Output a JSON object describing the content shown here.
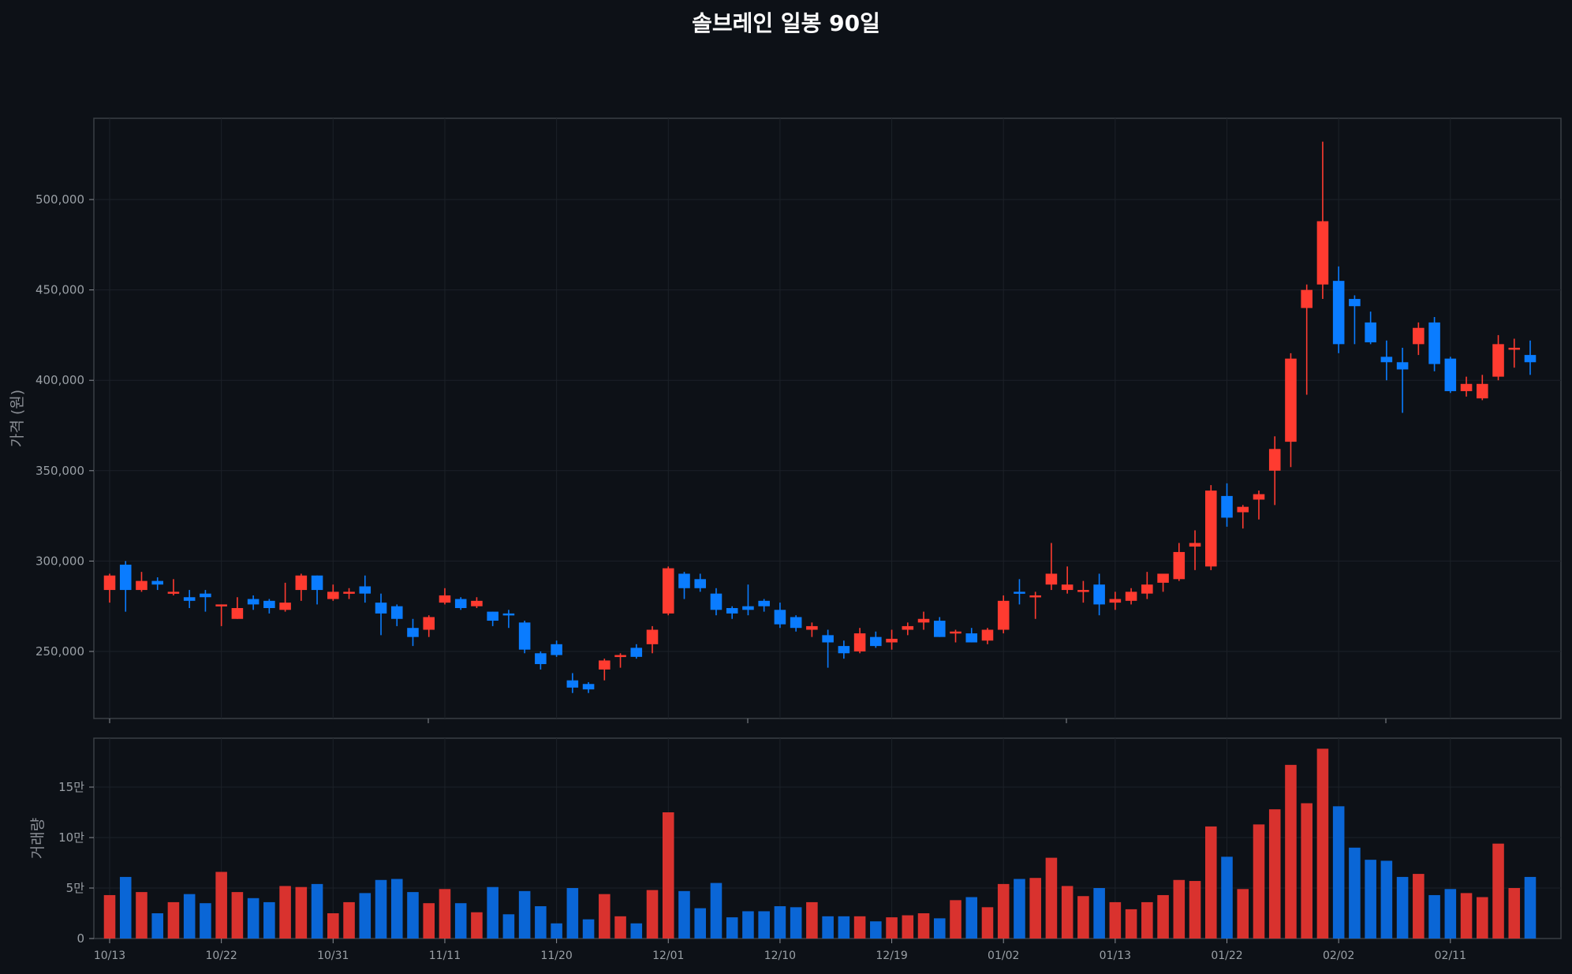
{
  "title": "솔브레인 일봉 90일",
  "colors": {
    "background": "#0d1117",
    "up": "#ff3b30",
    "down": "#0a7cff",
    "vol_up": "#d9322e",
    "vol_down": "#0a66d6",
    "grid": "#1c2128",
    "frame": "#3a3f45"
  },
  "chart_data": [
    {
      "type": "candlestick",
      "title": "솔브레인 일봉 90일",
      "xlabel": "",
      "ylabel": "가격 (원)",
      "ylim": [
        212000,
        545000
      ],
      "yticks": [
        "250,000",
        "300,000",
        "350,000",
        "400,000",
        "450,000",
        "500,000"
      ],
      "ytick_values": [
        250000,
        300000,
        350000,
        400000,
        450000,
        500000
      ],
      "xtick_labels": [
        "10/13",
        "10/22",
        "10/31",
        "11/11",
        "11/20",
        "12/01",
        "12/10",
        "12/19",
        "01/02",
        "01/13",
        "01/22",
        "02/02",
        "02/11"
      ],
      "xtick_index": [
        0,
        7,
        14,
        21,
        28,
        35,
        42,
        49,
        56,
        63,
        70,
        77,
        84
      ],
      "grid": true,
      "candles": [
        [
          284000,
          293000,
          277000,
          292000
        ],
        [
          298000,
          300000,
          272000,
          284000
        ],
        [
          284000,
          294000,
          283000,
          289000
        ],
        [
          289000,
          291000,
          284000,
          287000
        ],
        [
          282000,
          290000,
          281000,
          283000
        ],
        [
          280000,
          284000,
          274000,
          278000
        ],
        [
          282000,
          284000,
          272000,
          280000
        ],
        [
          275000,
          276000,
          264000,
          276000
        ],
        [
          268000,
          280000,
          268000,
          274000
        ],
        [
          279000,
          281000,
          273000,
          276000
        ],
        [
          278000,
          279000,
          271000,
          274000
        ],
        [
          273000,
          288000,
          272000,
          277000
        ],
        [
          284000,
          293000,
          278000,
          292000
        ],
        [
          292000,
          292000,
          276000,
          284000
        ],
        [
          279000,
          287000,
          278000,
          283000
        ],
        [
          282000,
          285000,
          279000,
          283000
        ],
        [
          286000,
          292000,
          277000,
          282000
        ],
        [
          277000,
          282000,
          259000,
          271000
        ],
        [
          275000,
          276000,
          264000,
          268000
        ],
        [
          263000,
          268000,
          253000,
          258000
        ],
        [
          262000,
          270000,
          258000,
          269000
        ],
        [
          277000,
          285000,
          276000,
          281000
        ],
        [
          279000,
          280000,
          273000,
          274000
        ],
        [
          275000,
          280000,
          274000,
          278000
        ],
        [
          272000,
          272000,
          264000,
          267000
        ],
        [
          271000,
          273000,
          263000,
          270000
        ],
        [
          266000,
          267000,
          249000,
          251000
        ],
        [
          249000,
          250000,
          240000,
          243000
        ],
        [
          254000,
          256000,
          247000,
          248000
        ],
        [
          234000,
          238000,
          227000,
          230000
        ],
        [
          232000,
          233000,
          227000,
          229000
        ],
        [
          240000,
          246000,
          234000,
          245000
        ],
        [
          248000,
          249000,
          241000,
          248000
        ],
        [
          252000,
          254000,
          246000,
          247000
        ],
        [
          254000,
          264000,
          249000,
          262000
        ],
        [
          271000,
          297000,
          270000,
          296000
        ],
        [
          293000,
          294000,
          279000,
          285000
        ],
        [
          290000,
          293000,
          283000,
          285000
        ],
        [
          282000,
          285000,
          270000,
          273000
        ],
        [
          274000,
          275000,
          268000,
          271000
        ],
        [
          275000,
          287000,
          270000,
          273000
        ],
        [
          278000,
          279000,
          272000,
          275000
        ],
        [
          273000,
          277000,
          263000,
          265000
        ],
        [
          269000,
          270000,
          261000,
          263000
        ],
        [
          262000,
          266000,
          258000,
          264000
        ],
        [
          259000,
          262000,
          241000,
          255000
        ],
        [
          253000,
          256000,
          246000,
          249000
        ],
        [
          250000,
          263000,
          249000,
          260000
        ],
        [
          258000,
          261000,
          252000,
          253000
        ],
        [
          255000,
          262000,
          251000,
          257000
        ],
        [
          262000,
          266000,
          259000,
          264000
        ],
        [
          266000,
          272000,
          262000,
          268000
        ],
        [
          267000,
          269000,
          258000,
          258000
        ],
        [
          260000,
          262000,
          255000,
          261000
        ],
        [
          260000,
          263000,
          255000,
          255000
        ],
        [
          256000,
          263000,
          254000,
          262000
        ],
        [
          262000,
          281000,
          260000,
          278000
        ],
        [
          283000,
          290000,
          276000,
          282000
        ],
        [
          280000,
          283000,
          268000,
          281000
        ],
        [
          287000,
          310000,
          284000,
          293000
        ],
        [
          284000,
          297000,
          282000,
          287000
        ],
        [
          283000,
          289000,
          277000,
          284000
        ],
        [
          287000,
          293000,
          270000,
          276000
        ],
        [
          277000,
          283000,
          273000,
          279000
        ],
        [
          278000,
          285000,
          276000,
          283000
        ],
        [
          282000,
          294000,
          279000,
          287000
        ],
        [
          288000,
          292000,
          283000,
          293000
        ],
        [
          290000,
          310000,
          289000,
          305000
        ],
        [
          308000,
          317000,
          295000,
          310000
        ],
        [
          297000,
          342000,
          295000,
          339000
        ],
        [
          336000,
          343000,
          319000,
          324000
        ],
        [
          327000,
          331000,
          318000,
          330000
        ],
        [
          334000,
          339000,
          323000,
          337000
        ],
        [
          350000,
          369000,
          331000,
          362000
        ],
        [
          366000,
          415000,
          352000,
          412000
        ],
        [
          440000,
          453000,
          392000,
          450000
        ],
        [
          453000,
          532000,
          445000,
          488000
        ],
        [
          455000,
          463000,
          415000,
          420000
        ],
        [
          445000,
          447000,
          420000,
          441000
        ],
        [
          432000,
          438000,
          420000,
          421000
        ],
        [
          413000,
          422000,
          400000,
          410000
        ],
        [
          410000,
          418000,
          382000,
          406000
        ],
        [
          420000,
          432000,
          414000,
          429000
        ],
        [
          432000,
          435000,
          405000,
          409000
        ],
        [
          412000,
          413000,
          393000,
          394000
        ],
        [
          394000,
          402000,
          391000,
          398000
        ],
        [
          390000,
          403000,
          389000,
          398000
        ],
        [
          402000,
          425000,
          400000,
          420000
        ],
        [
          418000,
          423000,
          407000,
          418000
        ],
        [
          414000,
          422000,
          403000,
          410000
        ]
      ],
      "volume": {
        "ylabel": "거래량",
        "yticks": [
          "0",
          "5만",
          "10만",
          "15만"
        ],
        "ytick_values": [
          0,
          50000,
          100000,
          150000
        ],
        "ylim": [
          0,
          190000
        ],
        "values": [
          43000,
          61000,
          46000,
          25000,
          36000,
          44000,
          35000,
          66000,
          46000,
          40000,
          36000,
          52000,
          51000,
          54000,
          25000,
          36000,
          45000,
          58000,
          59000,
          46000,
          35000,
          49000,
          35000,
          26000,
          51000,
          24000,
          47000,
          32000,
          15000,
          50000,
          19000,
          44000,
          22000,
          15000,
          48000,
          125000,
          47000,
          30000,
          55000,
          21000,
          27000,
          27000,
          32000,
          31000,
          36000,
          22000,
          22000,
          22000,
          17000,
          21000,
          23000,
          25000,
          20000,
          38000,
          41000,
          31000,
          54000,
          59000,
          60000,
          80000,
          52000,
          42000,
          50000,
          36000,
          29000,
          36000,
          43000,
          58000,
          57000,
          111000,
          81000,
          49000,
          113000,
          128000,
          172000,
          134000,
          188000,
          131000,
          90000,
          78000,
          77000,
          61000,
          64000,
          43000,
          49000,
          45000,
          41000,
          94000,
          50000,
          61000
        ]
      }
    }
  ]
}
